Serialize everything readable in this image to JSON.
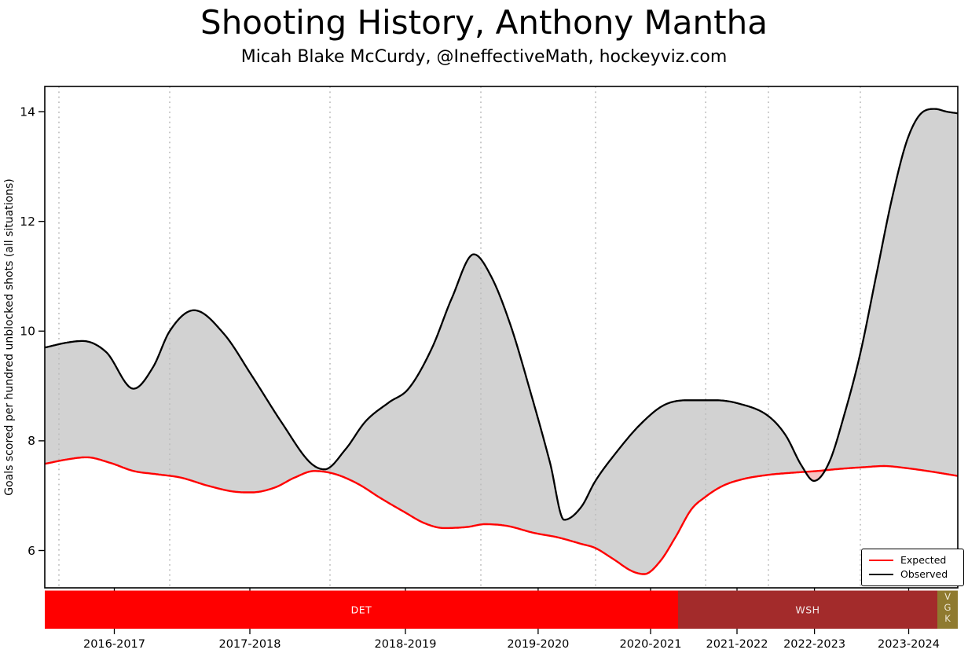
{
  "header": {
    "title": "Shooting History, Anthony Mantha",
    "subtitle": "Micah Blake McCurdy, @IneffectiveMath, hockeyviz.com"
  },
  "chart_data": {
    "type": "area",
    "title": "Shooting History, Anthony Mantha",
    "y_axis": {
      "label": "Goals scored per hundred unblocked shots (all situations)",
      "ticks": [
        6,
        8,
        10,
        12,
        14
      ],
      "range": [
        5.32,
        14.46
      ]
    },
    "x_axis": {
      "season_labels": [
        "2016-2017",
        "2017-2018",
        "2018-2019",
        "2019-2020",
        "2020-2021",
        "2021-2022",
        "2022-2023",
        "2023-2024"
      ],
      "label_positions": [
        0.0762,
        0.2246,
        0.395,
        0.5404,
        0.6635,
        0.7582,
        0.843,
        0.9462
      ],
      "season_boundaries": [
        0.0155,
        0.1368,
        0.3124,
        0.4776,
        0.6033,
        0.7238,
        0.7926,
        0.8933
      ],
      "grid": "dotted"
    },
    "legend": {
      "position": "lower right",
      "entries": [
        {
          "label": "Expected",
          "color": "#ff0000"
        },
        {
          "label": "Observed",
          "color": "#000000"
        }
      ]
    },
    "fills": {
      "observed_above": "#d2d2d2",
      "expected_above": "#f6c2c2"
    },
    "series": [
      {
        "name": "Expected",
        "color": "#ff0000",
        "points": [
          [
            0.0,
            7.58
          ],
          [
            0.0241,
            7.66
          ],
          [
            0.0456,
            7.7
          ],
          [
            0.0714,
            7.6
          ],
          [
            0.0972,
            7.45
          ],
          [
            0.1231,
            7.39
          ],
          [
            0.1489,
            7.33
          ],
          [
            0.179,
            7.18
          ],
          [
            0.2091,
            7.07
          ],
          [
            0.2263,
            7.06
          ],
          [
            0.2522,
            7.15
          ],
          [
            0.2737,
            7.33
          ],
          [
            0.2952,
            7.45
          ],
          [
            0.3167,
            7.4
          ],
          [
            0.3425,
            7.22
          ],
          [
            0.3683,
            6.95
          ],
          [
            0.3941,
            6.7
          ],
          [
            0.4157,
            6.5
          ],
          [
            0.4372,
            6.41
          ],
          [
            0.463,
            6.43
          ],
          [
            0.4819,
            6.48
          ],
          [
            0.506,
            6.45
          ],
          [
            0.5361,
            6.32
          ],
          [
            0.5619,
            6.24
          ],
          [
            0.5878,
            6.12
          ],
          [
            0.6024,
            6.05
          ],
          [
            0.6222,
            5.85
          ],
          [
            0.6437,
            5.62
          ],
          [
            0.6566,
            5.57
          ],
          [
            0.6738,
            5.8
          ],
          [
            0.691,
            6.25
          ],
          [
            0.7082,
            6.75
          ],
          [
            0.7237,
            6.98
          ],
          [
            0.7427,
            7.18
          ],
          [
            0.7642,
            7.3
          ],
          [
            0.7926,
            7.38
          ],
          [
            0.8202,
            7.42
          ],
          [
            0.846,
            7.45
          ],
          [
            0.8718,
            7.49
          ],
          [
            0.8976,
            7.52
          ],
          [
            0.9191,
            7.54
          ],
          [
            0.9449,
            7.5
          ],
          [
            0.9707,
            7.44
          ],
          [
            1.0,
            7.36
          ]
        ]
      },
      {
        "name": "Observed",
        "color": "#000000",
        "points": [
          [
            0.0,
            9.7
          ],
          [
            0.0241,
            9.79
          ],
          [
            0.0413,
            9.82
          ],
          [
            0.0671,
            9.62
          ],
          [
            0.0972,
            8.95
          ],
          [
            0.1188,
            9.35
          ],
          [
            0.1368,
            10.0
          ],
          [
            0.1635,
            10.38
          ],
          [
            0.1962,
            9.95
          ],
          [
            0.2263,
            9.2
          ],
          [
            0.2608,
            8.3
          ],
          [
            0.2909,
            7.6
          ],
          [
            0.3064,
            7.48
          ],
          [
            0.3296,
            7.85
          ],
          [
            0.3511,
            8.35
          ],
          [
            0.3769,
            8.7
          ],
          [
            0.3984,
            8.95
          ],
          [
            0.4243,
            9.7
          ],
          [
            0.4458,
            10.6
          ],
          [
            0.4699,
            11.4
          ],
          [
            0.4888,
            11.0
          ],
          [
            0.5103,
            10.1
          ],
          [
            0.5318,
            8.9
          ],
          [
            0.5534,
            7.6
          ],
          [
            0.5688,
            6.56
          ],
          [
            0.5878,
            6.8
          ],
          [
            0.6024,
            7.25
          ],
          [
            0.6265,
            7.8
          ],
          [
            0.6523,
            8.3
          ],
          [
            0.6781,
            8.65
          ],
          [
            0.7039,
            8.74
          ],
          [
            0.7341,
            8.74
          ],
          [
            0.7599,
            8.68
          ],
          [
            0.7926,
            8.45
          ],
          [
            0.8115,
            8.1
          ],
          [
            0.8288,
            7.55
          ],
          [
            0.8425,
            7.27
          ],
          [
            0.8589,
            7.6
          ],
          [
            0.8761,
            8.5
          ],
          [
            0.8933,
            9.6
          ],
          [
            0.9105,
            11.0
          ],
          [
            0.9277,
            12.4
          ],
          [
            0.9449,
            13.5
          ],
          [
            0.9621,
            14.0
          ],
          [
            0.975,
            14.05
          ],
          [
            0.988,
            14.0
          ],
          [
            1.0,
            13.97
          ]
        ]
      }
    ],
    "team_bar": [
      {
        "team": "DET",
        "color": "#ff0000",
        "text_color": "#ffffff",
        "start": 0.0,
        "end": 0.6936,
        "vertical": false
      },
      {
        "team": "WSH",
        "color": "#a32b2b",
        "text_color": "#f2e7e7",
        "start": 0.6936,
        "end": 0.9776,
        "vertical": false
      },
      {
        "team": "VGK",
        "color": "#8f7a2f",
        "text_color": "#efe9d6",
        "start": 0.9776,
        "end": 1.0,
        "vertical": true
      }
    ]
  }
}
